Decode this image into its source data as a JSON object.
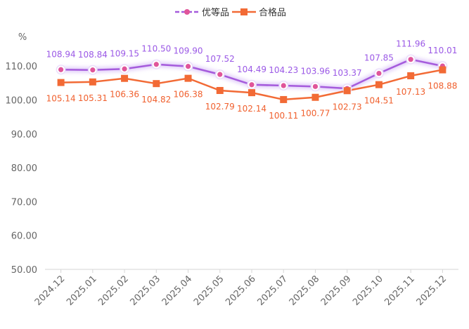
{
  "chart_data": {
    "type": "line",
    "unit_label": "%",
    "categories": [
      "2024.12",
      "2025.01",
      "2025.02",
      "2025.03",
      "2025.04",
      "2025.05",
      "2025.06",
      "2025.07",
      "2025.08",
      "2025.09",
      "2025.10",
      "2025.11",
      "2025.12"
    ],
    "yticks": [
      "50.00",
      "60.00",
      "70.00",
      "80.00",
      "90.00",
      "100.00",
      "110.00"
    ],
    "ylim": [
      50,
      115
    ],
    "grid": false,
    "legend_position": "top-center",
    "series": [
      {
        "name": "优等品",
        "color": "#a55bdc",
        "marker": "circle",
        "dashed_legend": true,
        "values": [
          108.94,
          108.84,
          109.15,
          110.5,
          109.9,
          107.52,
          104.49,
          104.23,
          103.96,
          103.37,
          107.85,
          111.96,
          110.01
        ],
        "labels": [
          "108.94",
          "108.84",
          "109.15",
          "110.50",
          "109.90",
          "107.52",
          "104.49",
          "104.23",
          "103.96",
          "103.37",
          "107.85",
          "111.96",
          "110.01"
        ]
      },
      {
        "name": "合格品",
        "color": "#f26a35",
        "marker": "square",
        "dashed_legend": false,
        "values": [
          105.14,
          105.31,
          106.36,
          104.82,
          106.38,
          102.79,
          102.14,
          100.11,
          100.77,
          102.73,
          104.51,
          107.13,
          108.88
        ],
        "labels": [
          "105.14",
          "105.31",
          "106.36",
          "104.82",
          "106.38",
          "102.79",
          "102.14",
          "100.11",
          "100.77",
          "102.73",
          "104.51",
          "107.13",
          "108.88"
        ]
      }
    ]
  }
}
